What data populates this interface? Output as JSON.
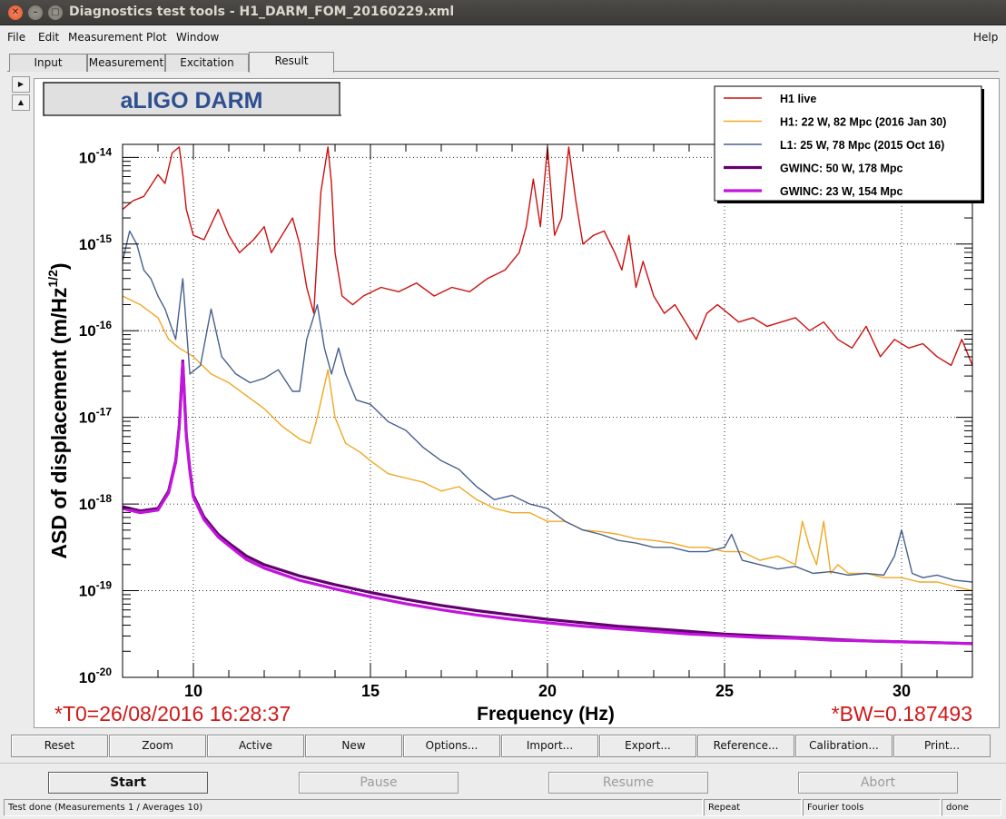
{
  "window": {
    "title": "Diagnostics test tools - H1_DARM_FOM_20160229.xml",
    "close_glyph": "✕",
    "minimize_glyph": "–",
    "maximize_glyph": "□"
  },
  "menubar": {
    "file": "File",
    "edit": "Edit",
    "measurement": "Measurement",
    "plot": "Plot",
    "window": "Window",
    "help": "Help"
  },
  "tabs": [
    "Input",
    "Measurement",
    "Excitation",
    "Result"
  ],
  "active_tab": "Result",
  "side_buttons": {
    "up": "▶",
    "down": "▲"
  },
  "plot": {
    "title_box": "aLIGO DARM",
    "t0_label": "*T0=26/08/2016 16:28:37",
    "bw_label": "*BW=0.187493",
    "title_color": "#2e4f90",
    "annotation_color": "#d01818"
  },
  "chart_data": {
    "type": "line",
    "title": "aLIGO DARM",
    "xlabel": "Frequency (Hz)",
    "ylabel": "ASD of displacement (m/Hz^{1/2})",
    "xlim": [
      8,
      32
    ],
    "ylim_log10": [
      -20,
      -13.85
    ],
    "y_scale": "log",
    "grid": true,
    "legend_position": "top-right",
    "x_ticks": [
      10,
      15,
      20,
      25,
      30
    ],
    "y_ticks": [
      {
        "base": "10",
        "exp": "-14",
        "log": -14
      },
      {
        "base": "10",
        "exp": "-15",
        "log": -15
      },
      {
        "base": "10",
        "exp": "-16",
        "log": -16
      },
      {
        "base": "10",
        "exp": "-17",
        "log": -17
      },
      {
        "base": "10",
        "exp": "-18",
        "log": -18
      },
      {
        "base": "10",
        "exp": "-19",
        "log": -19
      },
      {
        "base": "10",
        "exp": "-20",
        "log": -20
      }
    ],
    "series": [
      {
        "name": "H1 live",
        "color": "#cc1010",
        "width": 1.4,
        "x": [
          8,
          8.3,
          8.6,
          9,
          9.2,
          9.4,
          9.6,
          9.7,
          9.8,
          10,
          10.3,
          10.7,
          11,
          11.3,
          11.7,
          12,
          12.2,
          12.5,
          12.8,
          13,
          13.2,
          13.4,
          13.6,
          13.8,
          13.9,
          14,
          14.2,
          14.5,
          14.8,
          15.3,
          15.8,
          16.3,
          16.8,
          17.3,
          17.8,
          18.3,
          18.8,
          19.2,
          19.4,
          19.6,
          19.8,
          20,
          20.2,
          20.4,
          20.6,
          20.8,
          21,
          21.3,
          21.6,
          21.9,
          22.1,
          22.3,
          22.5,
          22.7,
          23,
          23.3,
          23.6,
          23.9,
          24.2,
          24.5,
          24.8,
          25.1,
          25.4,
          25.8,
          26.2,
          26.6,
          27,
          27.4,
          27.8,
          28.2,
          28.6,
          29,
          29.4,
          29.8,
          30.2,
          30.6,
          31,
          31.4,
          31.7,
          32
        ],
        "y": [
          -14.6,
          -14.5,
          -14.45,
          -14.2,
          -14.3,
          -13.95,
          -13.88,
          -14.2,
          -14.6,
          -14.9,
          -14.95,
          -14.6,
          -14.9,
          -15.1,
          -14.95,
          -14.8,
          -15.1,
          -14.9,
          -14.7,
          -15.0,
          -15.5,
          -15.8,
          -14.4,
          -13.88,
          -14.3,
          -15.1,
          -15.6,
          -15.7,
          -15.6,
          -15.5,
          -15.55,
          -15.45,
          -15.6,
          -15.5,
          -15.55,
          -15.4,
          -15.3,
          -15.1,
          -14.8,
          -14.25,
          -14.8,
          -13.88,
          -14.9,
          -14.7,
          -13.88,
          -14.5,
          -15.0,
          -14.9,
          -14.85,
          -15.1,
          -15.3,
          -14.9,
          -15.5,
          -15.2,
          -15.6,
          -15.8,
          -15.7,
          -15.9,
          -16.1,
          -15.8,
          -15.7,
          -15.8,
          -15.9,
          -15.85,
          -15.95,
          -15.9,
          -15.85,
          -16.0,
          -15.9,
          -16.1,
          -16.2,
          -15.95,
          -16.3,
          -16.1,
          -16.2,
          -16.15,
          -16.3,
          -16.4,
          -16.1,
          -16.4
        ]
      },
      {
        "name": "H1: 22 W, 82 Mpc (2016 Jan 30)",
        "color": "#f0a824",
        "width": 1.4,
        "x": [
          8,
          8.5,
          9,
          9.3,
          9.6,
          10,
          10.5,
          11,
          11.5,
          12,
          12.5,
          13,
          13.3,
          13.5,
          13.8,
          14,
          14.3,
          14.7,
          15,
          15.5,
          16,
          16.5,
          17,
          17.5,
          18,
          18.5,
          19,
          19.5,
          20,
          20.5,
          21,
          21.5,
          22,
          22.5,
          23,
          23.5,
          24,
          24.5,
          25,
          25.5,
          26,
          26.5,
          27,
          27.2,
          27.4,
          27.6,
          27.8,
          28,
          28.2,
          28.5,
          29,
          29.5,
          30,
          30.5,
          31,
          31.5,
          32
        ],
        "y": [
          -15.6,
          -15.7,
          -15.85,
          -16.1,
          -16.2,
          -16.3,
          -16.5,
          -16.6,
          -16.75,
          -16.9,
          -17.1,
          -17.25,
          -17.3,
          -17.0,
          -16.45,
          -17.0,
          -17.3,
          -17.4,
          -17.5,
          -17.65,
          -17.7,
          -17.75,
          -17.85,
          -17.8,
          -17.95,
          -18.05,
          -18.1,
          -18.1,
          -18.2,
          -18.2,
          -18.3,
          -18.32,
          -18.35,
          -18.4,
          -18.42,
          -18.45,
          -18.5,
          -18.5,
          -18.55,
          -18.55,
          -18.65,
          -18.6,
          -18.7,
          -18.2,
          -18.5,
          -18.7,
          -18.2,
          -18.8,
          -18.7,
          -18.8,
          -18.8,
          -18.85,
          -18.85,
          -18.9,
          -18.9,
          -18.95,
          -19.0
        ]
      },
      {
        "name": "L1: 25 W, 78 Mpc (2015 Oct 16)",
        "color": "#47608e",
        "width": 1.4,
        "x": [
          8,
          8.2,
          8.4,
          8.6,
          8.8,
          9,
          9.2,
          9.5,
          9.7,
          9.9,
          10.2,
          10.5,
          10.8,
          11.2,
          11.6,
          12,
          12.4,
          12.8,
          13,
          13.2,
          13.5,
          13.7,
          13.9,
          14.1,
          14.3,
          14.6,
          15,
          15.5,
          16,
          16.5,
          17,
          17.5,
          18,
          18.5,
          19,
          19.5,
          20,
          20.5,
          21,
          21.5,
          22,
          22.5,
          23,
          23.5,
          24,
          24.5,
          25,
          25.2,
          25.5,
          26,
          26.5,
          27,
          27.5,
          28,
          28.5,
          29,
          29.5,
          29.8,
          30,
          30.3,
          30.6,
          31,
          31.5,
          32
        ],
        "y": [
          -15.2,
          -14.85,
          -15.0,
          -15.3,
          -15.4,
          -15.6,
          -15.75,
          -16.1,
          -15.4,
          -16.5,
          -16.4,
          -15.75,
          -16.3,
          -16.5,
          -16.6,
          -16.55,
          -16.45,
          -16.7,
          -16.7,
          -16.1,
          -15.7,
          -16.2,
          -16.5,
          -16.2,
          -16.5,
          -16.8,
          -16.85,
          -17.05,
          -17.15,
          -17.35,
          -17.5,
          -17.6,
          -17.8,
          -17.95,
          -17.9,
          -18.0,
          -18.05,
          -18.2,
          -18.3,
          -18.35,
          -18.42,
          -18.45,
          -18.5,
          -18.5,
          -18.55,
          -18.55,
          -18.5,
          -18.35,
          -18.65,
          -18.7,
          -18.75,
          -18.72,
          -18.8,
          -18.78,
          -18.82,
          -18.8,
          -18.82,
          -18.6,
          -18.3,
          -18.8,
          -18.85,
          -18.82,
          -18.88,
          -18.9
        ]
      },
      {
        "name": "GWINC: 50 W, 178 Mpc",
        "color": "#62006e",
        "width": 3.2,
        "x": [
          8,
          8.5,
          9,
          9.3,
          9.5,
          9.6,
          9.7,
          9.8,
          9.9,
          10,
          10.3,
          10.7,
          11,
          11.5,
          12,
          13,
          14,
          15,
          16,
          17,
          18,
          19,
          20,
          21,
          22,
          23,
          24,
          25,
          26,
          27,
          28,
          29,
          30,
          31,
          32
        ],
        "y": [
          -18.03,
          -18.08,
          -18.05,
          -17.85,
          -17.5,
          -17.1,
          -16.35,
          -17.2,
          -17.6,
          -17.9,
          -18.15,
          -18.35,
          -18.45,
          -18.6,
          -18.7,
          -18.83,
          -18.93,
          -19.02,
          -19.1,
          -19.17,
          -19.23,
          -19.28,
          -19.33,
          -19.37,
          -19.41,
          -19.44,
          -19.47,
          -19.5,
          -19.52,
          -19.54,
          -19.56,
          -19.58,
          -19.59,
          -19.6,
          -19.61
        ]
      },
      {
        "name": "GWINC: 23 W, 154 Mpc",
        "color": "#c214dc",
        "width": 3.2,
        "x": [
          8,
          8.5,
          9,
          9.3,
          9.5,
          9.6,
          9.7,
          9.8,
          9.9,
          10,
          10.3,
          10.7,
          11,
          11.5,
          12,
          13,
          14,
          15,
          16,
          17,
          18,
          19,
          20,
          21,
          22,
          23,
          24,
          25,
          26,
          27,
          28,
          29,
          30,
          31,
          32
        ],
        "y": [
          -18.05,
          -18.1,
          -18.07,
          -17.87,
          -17.52,
          -17.12,
          -16.37,
          -17.22,
          -17.62,
          -17.92,
          -18.18,
          -18.38,
          -18.48,
          -18.64,
          -18.74,
          -18.88,
          -18.98,
          -19.07,
          -19.15,
          -19.22,
          -19.28,
          -19.33,
          -19.37,
          -19.41,
          -19.44,
          -19.47,
          -19.5,
          -19.52,
          -19.54,
          -19.55,
          -19.57,
          -19.58,
          -19.59,
          -19.6,
          -19.61
        ]
      }
    ]
  },
  "tool_buttons": [
    "Reset",
    "Zoom",
    "Active",
    "New",
    "Options...",
    "Import...",
    "Export...",
    "Reference...",
    "Calibration...",
    "Print..."
  ],
  "control_buttons": {
    "start": "Start",
    "pause": "Pause",
    "resume": "Resume",
    "abort": "Abort"
  },
  "status_bar": {
    "message": "Test done (Measurements 1 / Averages 10)",
    "mode": "Repeat",
    "tool": "Fourier tools",
    "state": "done"
  }
}
